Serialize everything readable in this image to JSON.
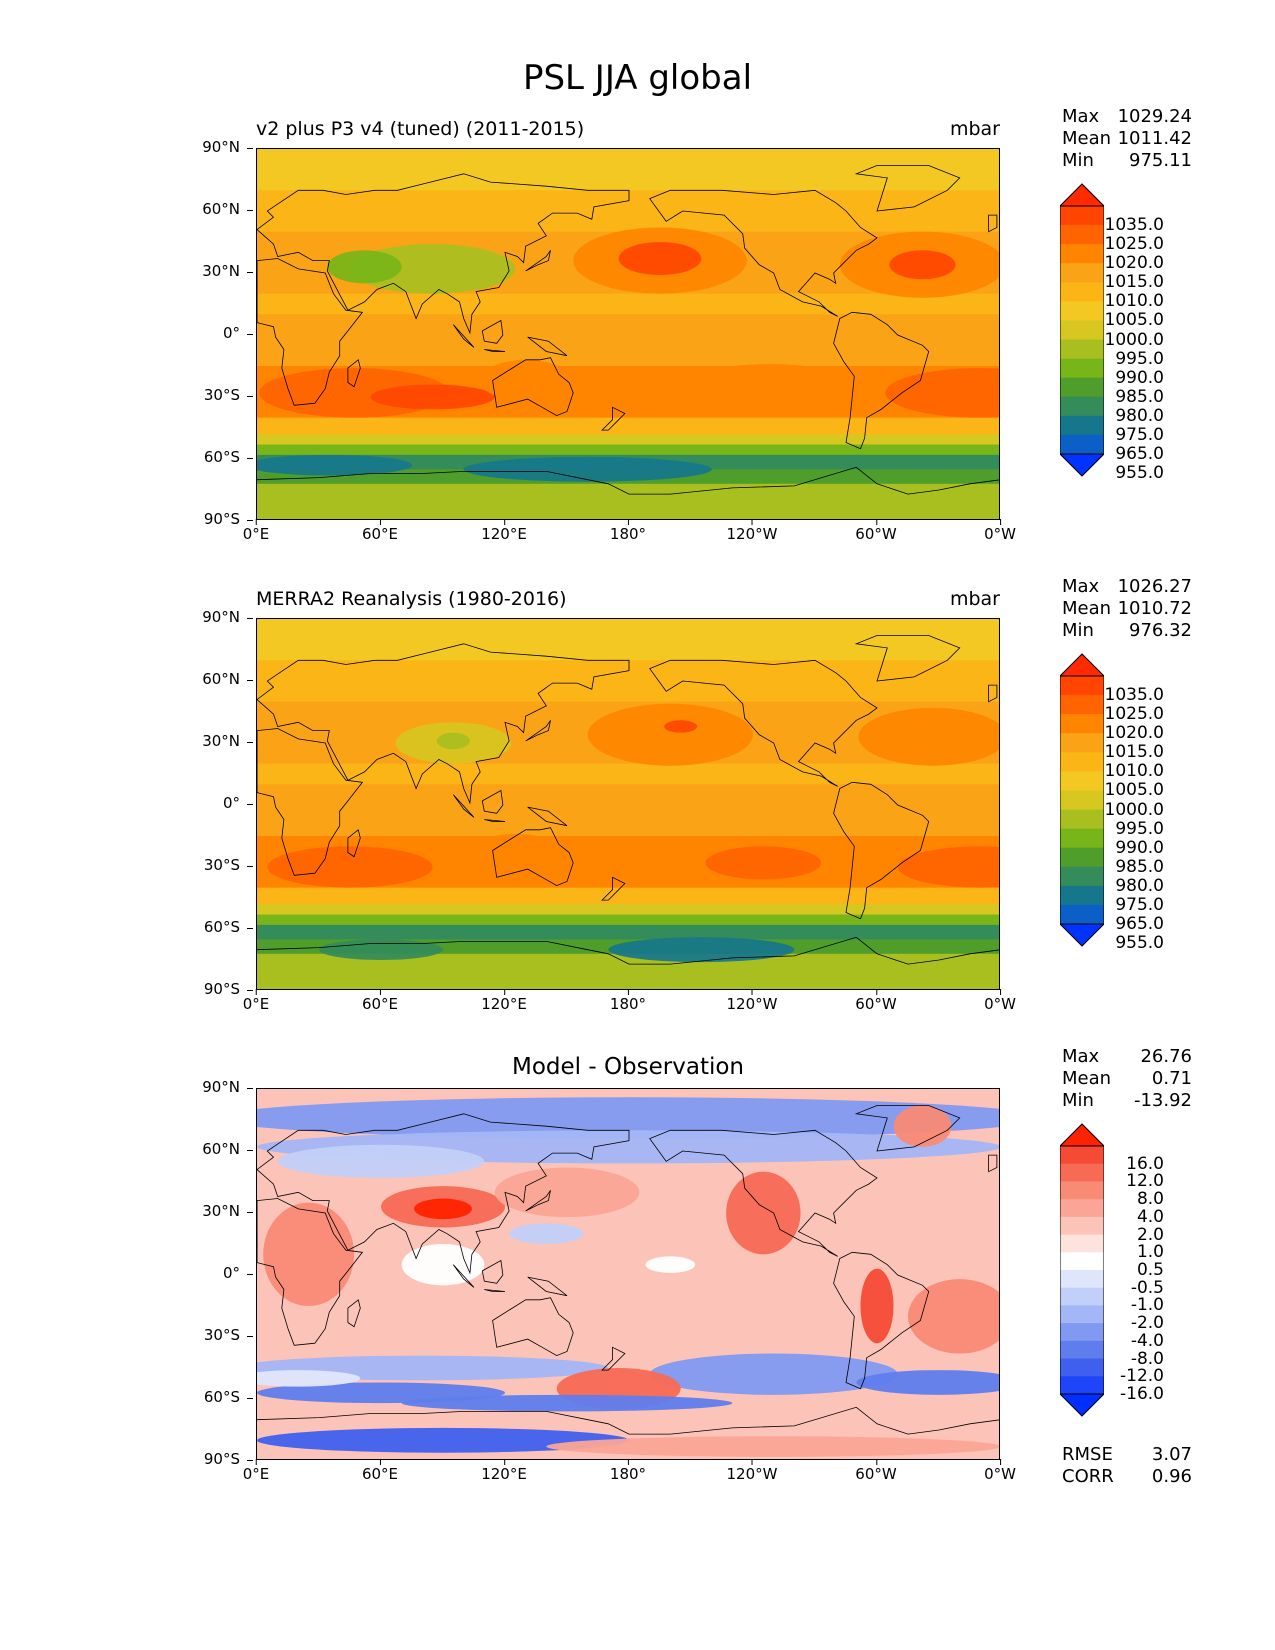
{
  "figure": {
    "title": "PSL JJA global"
  },
  "axes": {
    "y_ticks": [
      "90°N",
      "60°N",
      "30°N",
      "0°",
      "30°S",
      "60°S",
      "90°S"
    ],
    "x_ticks": [
      "0°E",
      "60°E",
      "120°E",
      "180°",
      "120°W",
      "60°W",
      "0°W"
    ]
  },
  "panels": [
    {
      "title": "v2 plus P3 v4 (tuned) (2011-2015)",
      "units": "mbar",
      "stats": {
        "max_label": "Max",
        "max": "1029.24",
        "mean_label": "Mean",
        "mean": "1011.42",
        "min_label": "Min",
        "min": "975.11"
      },
      "colorbar_levels": [
        "1035.0",
        "1025.0",
        "1020.0",
        "1015.0",
        "1010.0",
        "1005.0",
        "1000.0",
        "995.0",
        "990.0",
        "985.0",
        "980.0",
        "975.0",
        "965.0",
        "955.0"
      ]
    },
    {
      "title": "MERRA2 Reanalysis (1980-2016)",
      "units": "mbar",
      "stats": {
        "max_label": "Max",
        "max": "1026.27",
        "mean_label": "Mean",
        "mean": "1010.72",
        "min_label": "Min",
        "min": "976.32"
      },
      "colorbar_levels": [
        "1035.0",
        "1025.0",
        "1020.0",
        "1015.0",
        "1010.0",
        "1005.0",
        "1000.0",
        "995.0",
        "990.0",
        "985.0",
        "980.0",
        "975.0",
        "965.0",
        "955.0"
      ]
    },
    {
      "title": "Model - Observation",
      "units": "",
      "stats": {
        "max_label": "Max",
        "max": "26.76",
        "mean_label": "Mean",
        "mean": "0.71",
        "min_label": "Min",
        "min": "-13.92"
      },
      "colorbar_levels": [
        "16.0",
        "12.0",
        "8.0",
        "4.0",
        "2.0",
        "1.0",
        "0.5",
        "-0.5",
        "-1.0",
        "-2.0",
        "-4.0",
        "-8.0",
        "-12.0",
        "-16.0"
      ],
      "metrics": {
        "rmse_label": "RMSE",
        "rmse": "3.07",
        "corr_label": "CORR",
        "corr": "0.96"
      }
    }
  ],
  "colors": {
    "psl_scale": [
      "#ff2a00",
      "#ff4500",
      "#ff6400",
      "#ff8500",
      "#fba317",
      "#fbb517",
      "#f4c823",
      "#d8c621",
      "#a9bf1f",
      "#77b519",
      "#4f9d2b",
      "#338c5a",
      "#16778c",
      "#0c5fc7",
      "#0033ff"
    ],
    "diff_scale": [
      "#ff2200",
      "#f54b35",
      "#f76a54",
      "#f98a76",
      "#fba596",
      "#fcc4b8",
      "#fde3dc",
      "#ffffff",
      "#dfe6fb",
      "#c2cff8",
      "#a3b6f5",
      "#8199f1",
      "#5f7ded",
      "#3f60ee",
      "#1f45fa",
      "#0030ff"
    ],
    "land_line": "#000000"
  }
}
